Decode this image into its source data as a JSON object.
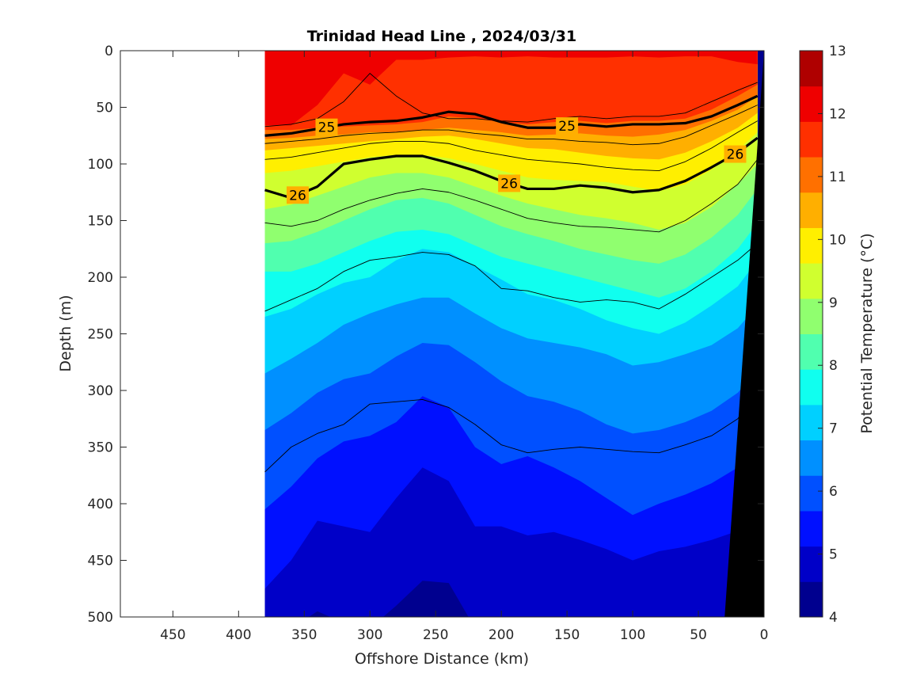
{
  "chart_data": {
    "type": "heatmap",
    "title": "Trinidad Head Line , 2024/03/31",
    "xlabel": "Offshore Distance (km)",
    "ylabel": "Depth (m)",
    "colorbar_label": "Potential Temperature (°C)",
    "xlim": [
      490,
      0
    ],
    "ylim": [
      0,
      500
    ],
    "x_reversed": true,
    "y_reversed": true,
    "x_ticks": [
      450,
      400,
      350,
      300,
      250,
      200,
      150,
      100,
      50,
      0
    ],
    "y_ticks": [
      0,
      50,
      100,
      150,
      200,
      250,
      300,
      350,
      400,
      450,
      500
    ],
    "data_x_range": [
      380,
      0
    ],
    "colorbar": {
      "min": 4,
      "max": 13,
      "step": 0.5,
      "ticks": [
        4,
        5,
        6,
        7,
        8,
        9,
        10,
        11,
        12,
        13
      ],
      "colors": [
        "#00008f",
        "#0000c8",
        "#0010ff",
        "#0050ff",
        "#0090ff",
        "#00d0ff",
        "#10ffef",
        "#50ffaf",
        "#90ff6f",
        "#d0ff2f",
        "#ffef00",
        "#ffaf00",
        "#ff7000",
        "#ff3000",
        "#ef0000",
        "#af0000"
      ]
    },
    "x": [
      380,
      360,
      340,
      320,
      300,
      280,
      260,
      240,
      220,
      200,
      180,
      160,
      140,
      120,
      100,
      80,
      60,
      40,
      20,
      5
    ],
    "isotherm_depths": [
      {
        "temp": 11.0,
        "depths": [
          66,
          66,
          48,
          20,
          30,
          8,
          8,
          6,
          5,
          6,
          5,
          6,
          6,
          6,
          5,
          6,
          5,
          5,
          10,
          12
        ]
      },
      {
        "temp": 10.5,
        "depths": [
          70,
          70,
          68,
          67,
          66,
          65,
          63,
          58,
          60,
          63,
          65,
          63,
          62,
          64,
          62,
          62,
          60,
          52,
          40,
          30
        ]
      },
      {
        "temp": 10.0,
        "depths": [
          78,
          77,
          75,
          74,
          72,
          72,
          70,
          68,
          70,
          72,
          75,
          74,
          73,
          75,
          76,
          74,
          70,
          62,
          52,
          40
        ]
      },
      {
        "temp": 9.5,
        "depths": [
          88,
          86,
          84,
          82,
          80,
          78,
          76,
          75,
          78,
          82,
          86,
          87,
          90,
          93,
          95,
          96,
          90,
          80,
          68,
          55
        ]
      },
      {
        "temp": 9.0,
        "depths": [
          108,
          106,
          102,
          98,
          94,
          92,
          92,
          95,
          100,
          106,
          112,
          114,
          115,
          116,
          120,
          124,
          118,
          105,
          88,
          72
        ]
      },
      {
        "temp": 8.5,
        "depths": [
          140,
          136,
          128,
          120,
          112,
          108,
          108,
          112,
          120,
          128,
          135,
          140,
          145,
          148,
          152,
          158,
          152,
          138,
          118,
          100
        ]
      },
      {
        "temp": 8.0,
        "depths": [
          170,
          168,
          160,
          150,
          140,
          132,
          130,
          135,
          145,
          155,
          162,
          168,
          175,
          180,
          185,
          188,
          180,
          165,
          145,
          122
        ]
      },
      {
        "temp": 7.5,
        "depths": [
          195,
          195,
          188,
          178,
          168,
          160,
          158,
          162,
          172,
          182,
          188,
          194,
          200,
          206,
          212,
          218,
          210,
          195,
          175,
          152
        ]
      },
      {
        "temp": 7.0,
        "depths": [
          235,
          228,
          215,
          205,
          200,
          185,
          175,
          178,
          190,
          202,
          215,
          220,
          228,
          238,
          245,
          250,
          240,
          225,
          208,
          185
        ]
      },
      {
        "temp": 6.5,
        "depths": [
          285,
          272,
          258,
          242,
          232,
          224,
          218,
          218,
          232,
          245,
          254,
          258,
          262,
          268,
          278,
          275,
          268,
          260,
          245,
          225
        ]
      },
      {
        "temp": 6.0,
        "depths": [
          335,
          320,
          302,
          290,
          285,
          270,
          258,
          260,
          275,
          292,
          305,
          310,
          318,
          330,
          338,
          335,
          328,
          318,
          302,
          282
        ]
      },
      {
        "temp": 5.5,
        "depths": [
          405,
          385,
          360,
          345,
          340,
          328,
          305,
          315,
          350,
          365,
          358,
          368,
          380,
          395,
          410,
          400,
          392,
          382,
          368,
          345
        ]
      },
      {
        "temp": 5.0,
        "depths": [
          475,
          450,
          415,
          420,
          425,
          395,
          368,
          380,
          420,
          420,
          428,
          425,
          432,
          440,
          450,
          442,
          438,
          432,
          424,
          408
        ]
      },
      {
        "temp": 4.5,
        "depths": [
          510,
          510,
          495,
          505,
          510,
          490,
          468,
          470,
          510,
          510,
          510,
          510,
          510,
          510,
          510,
          510,
          510,
          510,
          510,
          510
        ]
      }
    ],
    "density_contours": [
      {
        "sigma": 25,
        "depths": [
          75,
          73,
          69,
          65,
          63,
          62,
          59,
          54,
          56,
          63,
          68,
          68,
          65,
          67,
          65,
          65,
          64,
          58,
          48,
          40
        ],
        "labels": [
          {
            "x": 333,
            "text": "25"
          },
          {
            "x": 150,
            "text": "25"
          }
        ]
      },
      {
        "sigma": 26,
        "depths": [
          123,
          130,
          120,
          100,
          96,
          93,
          93,
          99,
          106,
          115,
          122,
          122,
          119,
          121,
          125,
          123,
          115,
          103,
          90,
          77
        ],
        "labels": [
          {
            "x": 355,
            "text": "26"
          },
          {
            "x": 194,
            "text": "26"
          },
          {
            "x": 22,
            "text": "26"
          }
        ]
      }
    ],
    "thin_contours": [
      {
        "depths": [
          67,
          65,
          60,
          45,
          20,
          40,
          55,
          60,
          60,
          62,
          63,
          60,
          58,
          60,
          58,
          58,
          55,
          45,
          35,
          28
        ]
      },
      {
        "depths": [
          82,
          80,
          78,
          75,
          73,
          72,
          70,
          70,
          73,
          75,
          78,
          78,
          80,
          81,
          83,
          82,
          76,
          66,
          56,
          48
        ]
      },
      {
        "depths": [
          96,
          94,
          90,
          86,
          82,
          80,
          80,
          82,
          88,
          92,
          96,
          98,
          100,
          103,
          105,
          106,
          98,
          86,
          72,
          62
        ]
      },
      {
        "depths": [
          152,
          155,
          150,
          140,
          132,
          126,
          122,
          125,
          132,
          140,
          148,
          152,
          155,
          156,
          158,
          160,
          150,
          135,
          118,
          96
        ]
      },
      {
        "depths": [
          230,
          220,
          210,
          195,
          185,
          182,
          178,
          180,
          190,
          210,
          212,
          218,
          222,
          220,
          222,
          228,
          215,
          200,
          185,
          170
        ]
      },
      {
        "depths": [
          372,
          350,
          338,
          330,
          312,
          310,
          308,
          315,
          330,
          348,
          355,
          352,
          350,
          352,
          354,
          355,
          348,
          340,
          325,
          300
        ]
      }
    ],
    "bathymetry": {
      "surface_x": 0,
      "bottom_x": 30,
      "bottom_depth": 500,
      "color": "#000000"
    }
  }
}
